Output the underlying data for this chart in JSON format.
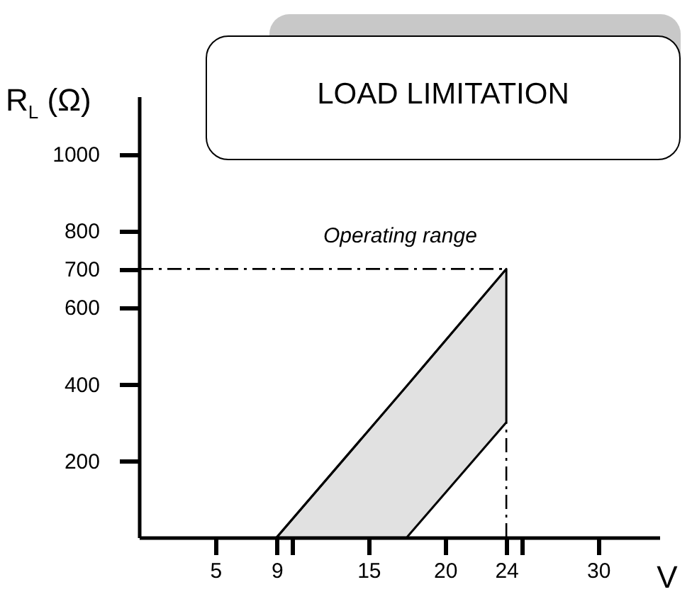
{
  "chart_data": {
    "type": "line",
    "title": "LOAD LIMITATION",
    "xlabel": "V",
    "ylabel": "R$_{L}$ (Ω)",
    "xlim": [
      0,
      34
    ],
    "ylim": [
      0,
      1150
    ],
    "xticks": [
      5,
      9,
      {
        "value": 10,
        "label": null
      },
      15,
      20,
      24,
      {
        "value": 25,
        "label": null
      },
      30
    ],
    "yticks": [
      200,
      400,
      600,
      700,
      800,
      1000
    ],
    "series": [
      {
        "color": "#000000",
        "x": [
          9,
          17.5,
          24
        ],
        "values": [
          0,
          395,
          700
        ],
        "lower": [
          0,
          0,
          300
        ],
        "upper": [
          0,
          395,
          700
        ]
      }
    ],
    "ref_lines": [
      {
        "axis": "y",
        "value": 700,
        "line_style": "dashed"
      },
      {
        "axis": "x",
        "value": 24,
        "line_style": "dashed"
      }
    ],
    "annotations": [
      "Operating range"
    ],
    "grid": false
  }
}
